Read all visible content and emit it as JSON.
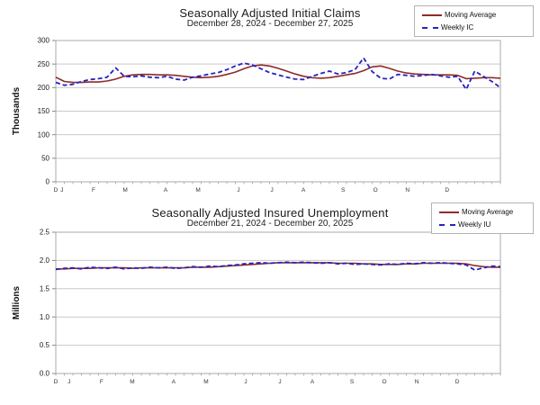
{
  "page": {
    "background": "#ffffff"
  },
  "colors": {
    "moving_average": "#8f2a2a",
    "weekly": "#2424c0",
    "gridline": "#c9c9c9",
    "plot_border": "#a8a8a8",
    "tick_text": "#1a1a1a",
    "month_text": "#333333"
  },
  "chart_data": [
    {
      "type": "line",
      "title": "Seasonally Adjusted Initial Claims",
      "subtitle": "December 28, 2024 - December 27, 2025",
      "ylabel": "Thousands",
      "ylim": [
        0,
        300
      ],
      "yticks": [
        0,
        50,
        100,
        150,
        200,
        250,
        300
      ],
      "ytick_labels": [
        "0",
        "50",
        "100",
        "150",
        "200",
        "250",
        "300"
      ],
      "grid": true,
      "legend_position": "top-right",
      "x_month_labels": [
        {
          "label": "D",
          "pos": 0.0
        },
        {
          "label": "J",
          "pos": 0.014
        },
        {
          "label": "F",
          "pos": 0.085
        },
        {
          "label": "M",
          "pos": 0.156
        },
        {
          "label": "A",
          "pos": 0.247
        },
        {
          "label": "M",
          "pos": 0.32
        },
        {
          "label": "J",
          "pos": 0.411
        },
        {
          "label": "J",
          "pos": 0.486
        },
        {
          "label": "A",
          "pos": 0.557
        },
        {
          "label": "S",
          "pos": 0.646
        },
        {
          "label": "O",
          "pos": 0.719
        },
        {
          "label": "N",
          "pos": 0.791
        },
        {
          "label": "D",
          "pos": 0.88
        }
      ],
      "series": [
        {
          "name": "Moving Average",
          "style": "solid",
          "color": "#8f2a2a",
          "values": [
            222,
            213,
            211,
            211,
            212,
            212,
            214,
            218,
            224,
            227,
            228,
            228,
            227,
            227,
            226,
            224,
            222,
            221,
            222,
            224,
            228,
            233,
            240,
            246,
            248,
            246,
            241,
            235,
            229,
            224,
            221,
            220,
            221,
            224,
            227,
            230,
            236,
            244,
            246,
            241,
            235,
            231,
            229,
            228,
            227,
            227,
            227,
            226,
            219,
            220,
            221,
            221,
            220
          ]
        },
        {
          "name": "Weekly IC",
          "style": "dashed",
          "color": "#2424c0",
          "values": [
            211,
            205,
            207,
            213,
            217,
            219,
            222,
            242,
            224,
            223,
            225,
            222,
            221,
            224,
            218,
            216,
            222,
            225,
            229,
            232,
            238,
            246,
            252,
            248,
            240,
            232,
            227,
            222,
            218,
            217,
            224,
            230,
            235,
            229,
            232,
            238,
            263,
            234,
            220,
            218,
            228,
            226,
            224,
            226,
            228,
            225,
            222,
            224,
            196,
            235,
            224,
            213,
            200
          ]
        }
      ]
    },
    {
      "type": "line",
      "title": "Seasonally Adjusted Insured Unemployment",
      "subtitle": "December 21, 2024 - December 20, 2025",
      "ylabel": "Millions",
      "ylim": [
        0,
        2.5
      ],
      "yticks": [
        0,
        0.5,
        1.0,
        1.5,
        2.0,
        2.5
      ],
      "ytick_labels": [
        "0.0",
        "0.5",
        "1.0",
        "1.5",
        "2.0",
        "2.5"
      ],
      "grid": true,
      "legend_position": "top-right",
      "x_month_labels": [
        {
          "label": "D",
          "pos": 0.0
        },
        {
          "label": "J",
          "pos": 0.03
        },
        {
          "label": "F",
          "pos": 0.103
        },
        {
          "label": "M",
          "pos": 0.172
        },
        {
          "label": "A",
          "pos": 0.265
        },
        {
          "label": "M",
          "pos": 0.338
        },
        {
          "label": "J",
          "pos": 0.427
        },
        {
          "label": "J",
          "pos": 0.504
        },
        {
          "label": "A",
          "pos": 0.577
        },
        {
          "label": "S",
          "pos": 0.666
        },
        {
          "label": "O",
          "pos": 0.739
        },
        {
          "label": "N",
          "pos": 0.812
        },
        {
          "label": "D",
          "pos": 0.903
        }
      ],
      "series": [
        {
          "name": "Moving Average",
          "style": "solid",
          "color": "#8f2a2a",
          "values": [
            1.85,
            1.85,
            1.86,
            1.86,
            1.86,
            1.87,
            1.87,
            1.87,
            1.87,
            1.86,
            1.87,
            1.87,
            1.87,
            1.87,
            1.87,
            1.87,
            1.88,
            1.88,
            1.88,
            1.89,
            1.9,
            1.91,
            1.92,
            1.93,
            1.94,
            1.95,
            1.96,
            1.96,
            1.96,
            1.96,
            1.96,
            1.96,
            1.96,
            1.95,
            1.95,
            1.95,
            1.94,
            1.94,
            1.93,
            1.93,
            1.93,
            1.94,
            1.94,
            1.95,
            1.95,
            1.95,
            1.95,
            1.95,
            1.94,
            1.91,
            1.89,
            1.88,
            1.88
          ]
        },
        {
          "name": "Weekly IU",
          "style": "dashed",
          "color": "#2424c0",
          "values": [
            1.84,
            1.86,
            1.87,
            1.85,
            1.88,
            1.87,
            1.86,
            1.88,
            1.85,
            1.87,
            1.86,
            1.88,
            1.87,
            1.88,
            1.86,
            1.87,
            1.89,
            1.88,
            1.9,
            1.89,
            1.91,
            1.92,
            1.94,
            1.95,
            1.96,
            1.95,
            1.96,
            1.97,
            1.96,
            1.97,
            1.96,
            1.95,
            1.96,
            1.94,
            1.95,
            1.93,
            1.94,
            1.93,
            1.92,
            1.94,
            1.93,
            1.95,
            1.94,
            1.96,
            1.95,
            1.96,
            1.95,
            1.94,
            1.92,
            1.83,
            1.87,
            1.9,
            1.89
          ]
        }
      ]
    }
  ]
}
